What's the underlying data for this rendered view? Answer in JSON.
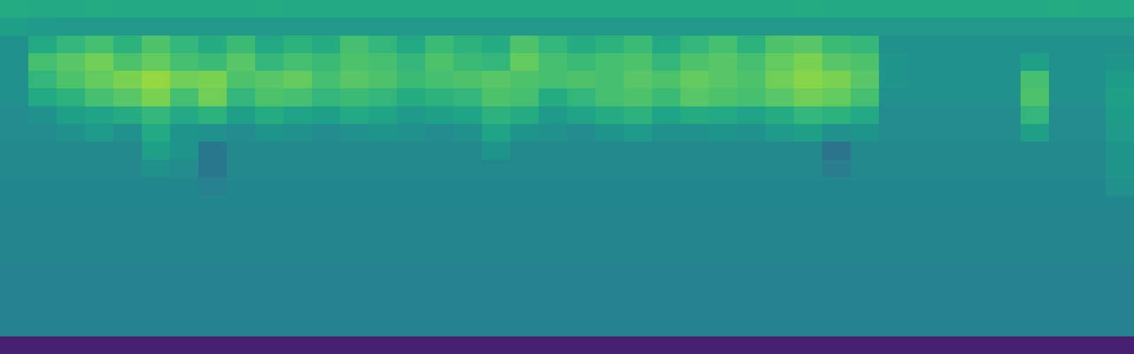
{
  "chart_data": {
    "type": "heatmap",
    "color": "Viridis",
    "tick_labels": false,
    "grid": false,
    "zlim": [
      0,
      1
    ],
    "cells": [
      [
        0.62,
        0.6,
        0.6,
        0.61,
        0.6,
        0.6,
        0.6,
        0.6,
        0.6,
        0.61,
        0.6,
        0.6,
        0.6,
        0.6,
        0.6,
        0.6,
        0.6,
        0.6,
        0.6,
        0.6,
        0.6,
        0.6,
        0.6,
        0.6,
        0.6,
        0.6,
        0.6,
        0.6,
        0.61,
        0.6,
        0.6,
        0.6,
        0.6,
        0.6,
        0.6,
        0.6,
        0.6,
        0.61,
        0.6,
        0.6
      ],
      [
        0.56,
        0.54,
        0.53,
        0.53,
        0.53,
        0.53,
        0.53,
        0.53,
        0.53,
        0.53,
        0.53,
        0.53,
        0.53,
        0.53,
        0.53,
        0.53,
        0.53,
        0.53,
        0.53,
        0.53,
        0.53,
        0.53,
        0.53,
        0.53,
        0.53,
        0.53,
        0.53,
        0.53,
        0.53,
        0.53,
        0.53,
        0.53,
        0.53,
        0.53,
        0.53,
        0.53,
        0.53,
        0.53,
        0.53,
        0.53
      ],
      [
        0.5,
        0.6,
        0.66,
        0.7,
        0.64,
        0.72,
        0.66,
        0.62,
        0.68,
        0.6,
        0.64,
        0.62,
        0.7,
        0.66,
        0.6,
        0.68,
        0.64,
        0.62,
        0.72,
        0.66,
        0.62,
        0.64,
        0.68,
        0.6,
        0.66,
        0.7,
        0.64,
        0.72,
        0.74,
        0.68,
        0.66,
        0.5,
        0.5,
        0.5,
        0.5,
        0.5,
        0.5,
        0.5,
        0.5,
        0.5
      ],
      [
        0.5,
        0.7,
        0.74,
        0.78,
        0.72,
        0.76,
        0.7,
        0.68,
        0.74,
        0.66,
        0.7,
        0.68,
        0.72,
        0.7,
        0.66,
        0.72,
        0.68,
        0.66,
        0.76,
        0.7,
        0.68,
        0.7,
        0.72,
        0.66,
        0.72,
        0.74,
        0.7,
        0.76,
        0.8,
        0.74,
        0.72,
        0.52,
        0.5,
        0.5,
        0.5,
        0.5,
        0.56,
        0.5,
        0.5,
        0.52
      ],
      [
        0.5,
        0.66,
        0.72,
        0.76,
        0.8,
        0.84,
        0.78,
        0.8,
        0.72,
        0.74,
        0.76,
        0.7,
        0.74,
        0.72,
        0.68,
        0.7,
        0.72,
        0.74,
        0.72,
        0.7,
        0.72,
        0.7,
        0.74,
        0.72,
        0.76,
        0.74,
        0.72,
        0.78,
        0.82,
        0.8,
        0.74,
        0.52,
        0.5,
        0.5,
        0.5,
        0.5,
        0.7,
        0.5,
        0.5,
        0.55
      ],
      [
        0.5,
        0.6,
        0.64,
        0.7,
        0.74,
        0.8,
        0.7,
        0.78,
        0.66,
        0.72,
        0.7,
        0.66,
        0.68,
        0.66,
        0.62,
        0.64,
        0.66,
        0.72,
        0.7,
        0.62,
        0.66,
        0.7,
        0.72,
        0.68,
        0.74,
        0.72,
        0.7,
        0.74,
        0.78,
        0.76,
        0.7,
        0.5,
        0.5,
        0.5,
        0.5,
        0.5,
        0.72,
        0.5,
        0.5,
        0.56
      ],
      [
        0.48,
        0.5,
        0.56,
        0.58,
        0.62,
        0.66,
        0.6,
        0.64,
        0.56,
        0.62,
        0.58,
        0.56,
        0.6,
        0.58,
        0.54,
        0.56,
        0.58,
        0.64,
        0.62,
        0.54,
        0.58,
        0.62,
        0.64,
        0.58,
        0.62,
        0.6,
        0.58,
        0.62,
        0.66,
        0.64,
        0.6,
        0.48,
        0.48,
        0.48,
        0.48,
        0.48,
        0.66,
        0.48,
        0.48,
        0.55
      ],
      [
        0.48,
        0.48,
        0.5,
        0.54,
        0.5,
        0.6,
        0.52,
        0.5,
        0.48,
        0.52,
        0.5,
        0.48,
        0.5,
        0.52,
        0.5,
        0.48,
        0.5,
        0.58,
        0.52,
        0.5,
        0.48,
        0.52,
        0.54,
        0.5,
        0.5,
        0.52,
        0.5,
        0.54,
        0.56,
        0.5,
        0.52,
        0.48,
        0.48,
        0.48,
        0.48,
        0.48,
        0.56,
        0.48,
        0.48,
        0.54
      ],
      [
        0.47,
        0.47,
        0.47,
        0.47,
        0.47,
        0.56,
        0.52,
        0.4,
        0.47,
        0.47,
        0.47,
        0.47,
        0.47,
        0.47,
        0.47,
        0.47,
        0.47,
        0.52,
        0.47,
        0.47,
        0.47,
        0.47,
        0.47,
        0.47,
        0.47,
        0.47,
        0.47,
        0.47,
        0.47,
        0.38,
        0.47,
        0.47,
        0.47,
        0.47,
        0.47,
        0.47,
        0.47,
        0.47,
        0.47,
        0.52
      ],
      [
        0.47,
        0.47,
        0.47,
        0.47,
        0.47,
        0.5,
        0.48,
        0.4,
        0.47,
        0.47,
        0.47,
        0.47,
        0.47,
        0.47,
        0.47,
        0.47,
        0.47,
        0.47,
        0.47,
        0.47,
        0.47,
        0.47,
        0.47,
        0.47,
        0.47,
        0.47,
        0.47,
        0.47,
        0.47,
        0.42,
        0.47,
        0.47,
        0.47,
        0.47,
        0.47,
        0.47,
        0.47,
        0.47,
        0.47,
        0.52
      ],
      [
        0.46,
        0.46,
        0.46,
        0.46,
        0.46,
        0.46,
        0.46,
        0.44,
        0.46,
        0.46,
        0.46,
        0.46,
        0.46,
        0.46,
        0.46,
        0.46,
        0.46,
        0.46,
        0.46,
        0.46,
        0.46,
        0.46,
        0.46,
        0.46,
        0.46,
        0.46,
        0.46,
        0.46,
        0.46,
        0.46,
        0.46,
        0.46,
        0.46,
        0.46,
        0.46,
        0.46,
        0.46,
        0.46,
        0.46,
        0.5
      ],
      [
        0.46,
        0.46,
        0.46,
        0.46,
        0.46,
        0.46,
        0.46,
        0.46,
        0.46,
        0.46,
        0.46,
        0.46,
        0.46,
        0.46,
        0.46,
        0.46,
        0.46,
        0.46,
        0.46,
        0.46,
        0.46,
        0.46,
        0.46,
        0.46,
        0.46,
        0.46,
        0.46,
        0.46,
        0.46,
        0.46,
        0.46,
        0.46,
        0.46,
        0.46,
        0.46,
        0.46,
        0.46,
        0.46,
        0.46,
        0.46
      ],
      [
        0.45,
        0.45,
        0.45,
        0.45,
        0.45,
        0.45,
        0.45,
        0.45,
        0.45,
        0.45,
        0.45,
        0.45,
        0.45,
        0.45,
        0.45,
        0.45,
        0.45,
        0.45,
        0.45,
        0.45,
        0.45,
        0.45,
        0.45,
        0.45,
        0.45,
        0.45,
        0.45,
        0.45,
        0.45,
        0.45,
        0.45,
        0.45,
        0.45,
        0.45,
        0.45,
        0.45,
        0.45,
        0.45,
        0.45,
        0.45
      ],
      [
        0.45,
        0.45,
        0.45,
        0.45,
        0.45,
        0.45,
        0.45,
        0.45,
        0.45,
        0.45,
        0.45,
        0.45,
        0.45,
        0.45,
        0.45,
        0.45,
        0.45,
        0.45,
        0.45,
        0.45,
        0.45,
        0.45,
        0.45,
        0.45,
        0.45,
        0.45,
        0.45,
        0.45,
        0.45,
        0.45,
        0.45,
        0.45,
        0.45,
        0.45,
        0.45,
        0.45,
        0.45,
        0.45,
        0.45,
        0.45
      ],
      [
        0.45,
        0.45,
        0.45,
        0.45,
        0.45,
        0.45,
        0.45,
        0.45,
        0.45,
        0.45,
        0.45,
        0.45,
        0.45,
        0.45,
        0.45,
        0.45,
        0.45,
        0.45,
        0.45,
        0.45,
        0.45,
        0.45,
        0.45,
        0.45,
        0.45,
        0.45,
        0.45,
        0.45,
        0.45,
        0.45,
        0.45,
        0.45,
        0.45,
        0.45,
        0.45,
        0.45,
        0.45,
        0.45,
        0.45,
        0.45
      ],
      [
        0.44,
        0.44,
        0.44,
        0.44,
        0.44,
        0.44,
        0.44,
        0.44,
        0.44,
        0.44,
        0.44,
        0.44,
        0.44,
        0.44,
        0.44,
        0.44,
        0.44,
        0.44,
        0.44,
        0.44,
        0.44,
        0.44,
        0.44,
        0.44,
        0.44,
        0.44,
        0.44,
        0.44,
        0.44,
        0.44,
        0.44,
        0.44,
        0.44,
        0.44,
        0.44,
        0.44,
        0.44,
        0.44,
        0.44,
        0.44
      ],
      [
        0.44,
        0.44,
        0.44,
        0.44,
        0.44,
        0.44,
        0.44,
        0.44,
        0.44,
        0.44,
        0.44,
        0.44,
        0.44,
        0.44,
        0.44,
        0.44,
        0.44,
        0.44,
        0.44,
        0.44,
        0.44,
        0.44,
        0.44,
        0.44,
        0.44,
        0.44,
        0.44,
        0.44,
        0.44,
        0.44,
        0.44,
        0.44,
        0.44,
        0.44,
        0.44,
        0.44,
        0.44,
        0.44,
        0.44,
        0.44
      ],
      [
        0.44,
        0.44,
        0.44,
        0.44,
        0.44,
        0.44,
        0.44,
        0.44,
        0.44,
        0.44,
        0.44,
        0.44,
        0.44,
        0.44,
        0.44,
        0.44,
        0.44,
        0.44,
        0.44,
        0.44,
        0.44,
        0.44,
        0.44,
        0.44,
        0.44,
        0.44,
        0.44,
        0.44,
        0.44,
        0.44,
        0.44,
        0.44,
        0.44,
        0.44,
        0.44,
        0.44,
        0.44,
        0.44,
        0.44,
        0.44
      ],
      [
        0.43,
        0.43,
        0.43,
        0.43,
        0.43,
        0.43,
        0.43,
        0.43,
        0.43,
        0.43,
        0.43,
        0.43,
        0.43,
        0.43,
        0.43,
        0.43,
        0.43,
        0.43,
        0.43,
        0.43,
        0.43,
        0.43,
        0.43,
        0.43,
        0.43,
        0.43,
        0.43,
        0.43,
        0.43,
        0.43,
        0.43,
        0.43,
        0.43,
        0.43,
        0.43,
        0.43,
        0.43,
        0.43,
        0.43,
        0.43
      ],
      [
        0.08,
        0.08,
        0.08,
        0.08,
        0.08,
        0.08,
        0.08,
        0.08,
        0.08,
        0.08,
        0.08,
        0.08,
        0.08,
        0.08,
        0.08,
        0.08,
        0.08,
        0.08,
        0.08,
        0.08,
        0.08,
        0.08,
        0.08,
        0.08,
        0.08,
        0.08,
        0.08,
        0.08,
        0.08,
        0.08,
        0.08,
        0.08,
        0.08,
        0.08,
        0.08,
        0.08,
        0.08,
        0.08,
        0.08,
        0.08
      ]
    ]
  }
}
